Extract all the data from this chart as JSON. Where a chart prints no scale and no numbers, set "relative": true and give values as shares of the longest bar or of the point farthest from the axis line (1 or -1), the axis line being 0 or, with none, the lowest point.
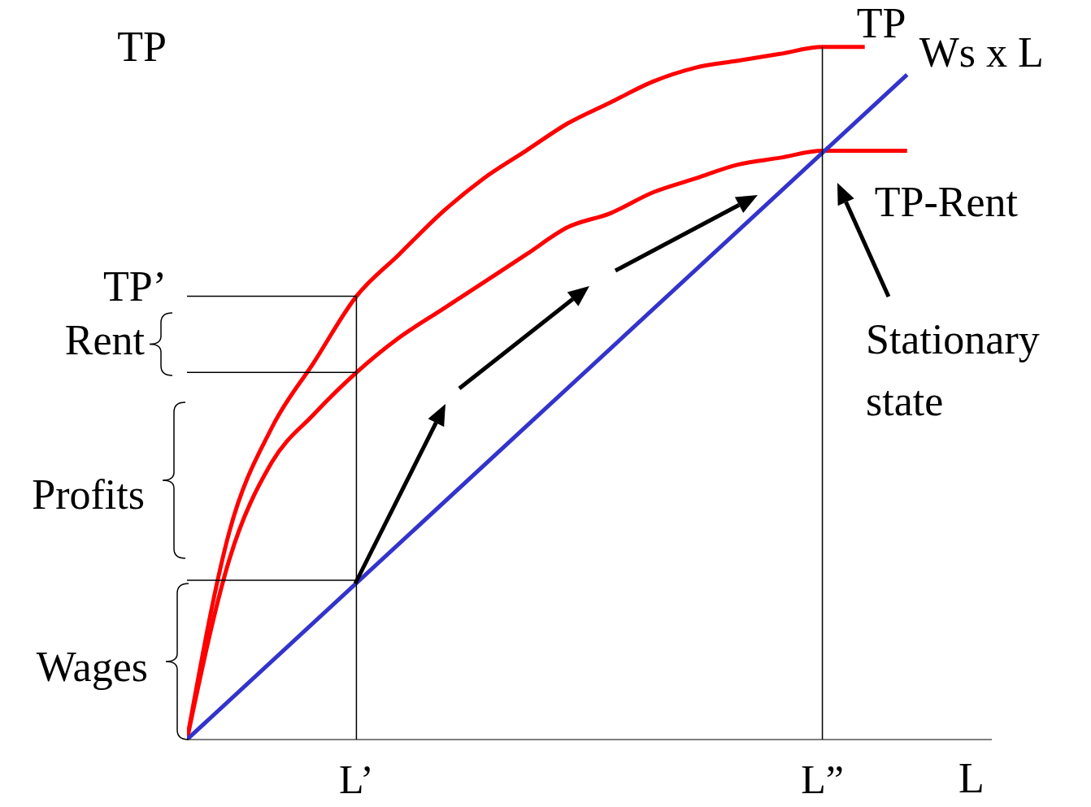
{
  "chart_data": {
    "type": "line",
    "relative": true,
    "ylabel": "TP",
    "xlabel": "L",
    "grid": false,
    "legend": false,
    "marker": "none",
    "line_style": "solid",
    "categories": [
      null,
      null,
      null,
      null,
      "L’",
      null,
      null,
      null,
      null,
      null,
      null,
      null,
      null,
      null,
      null,
      "L”",
      null,
      null,
      null,
      null
    ],
    "series": [
      {
        "name": "TP",
        "color": "#ff0000",
        "values": [
          0,
          0.3,
          0.45,
          0.545,
          0.64,
          0.7,
          0.76,
          0.81,
          0.85,
          0.89,
          0.92,
          0.95,
          0.97,
          0.98,
          0.99,
          1.0,
          1.0,
          null,
          null,
          null
        ]
      },
      {
        "name": "TP-Rent",
        "color": "#ff0000",
        "values": [
          0,
          0.26,
          0.4,
          0.47,
          0.53,
          0.58,
          0.62,
          0.66,
          0.7,
          0.74,
          0.76,
          0.79,
          0.81,
          0.83,
          0.84,
          0.85,
          0.85,
          0.85,
          null,
          null
        ]
      },
      {
        "name": "Ws x L",
        "color": "#3333cc",
        "values": [
          0,
          null,
          null,
          null,
          null,
          null,
          null,
          null,
          null,
          null,
          null,
          null,
          null,
          null,
          null,
          null,
          null,
          0.96,
          null,
          null
        ]
      }
    ],
    "ref_lines": [
      {
        "axis": "x",
        "value": "L’",
        "color": "#000000"
      },
      {
        "axis": "x",
        "value": "L”",
        "color": "#000000"
      },
      {
        "axis": "y",
        "value": 0.64,
        "color": "#000000"
      },
      {
        "axis": "y",
        "value": 0.53,
        "color": "#000000"
      },
      {
        "axis": "y",
        "value": 0.23,
        "color": "#000000"
      }
    ],
    "annotations": [
      "TP’",
      "Rent",
      "Profits",
      "Wages",
      "Stationary state"
    ]
  }
}
